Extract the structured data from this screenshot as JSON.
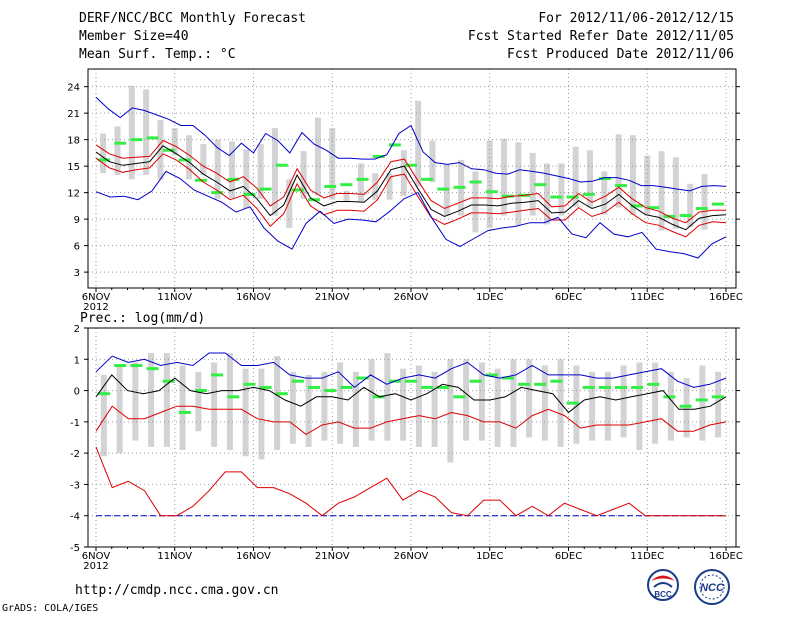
{
  "header": {
    "title": "DERF/NCC/BCC Monthly Forecast",
    "member_size": "Member Size=40",
    "variable": "Mean Surf. Temp.: °C",
    "forecast_for": "For 2012/11/06-2012/12/15",
    "refer_date": "Fcst Started Refer Date 2012/11/05",
    "produced_date": "Fcst Produced Date 2012/11/06"
  },
  "footer": {
    "url": "http://cmdp.ncc.cma.gov.cn",
    "credit": "GrADS: COLA/IGES",
    "logo_left": "BCC",
    "logo_right": "NCC"
  },
  "colors": {
    "grid": "#9a9a9a",
    "box": "#d3d3d6",
    "ens": "#33ee44",
    "line_mean": "#000000",
    "line_sd": "#dd0000",
    "line_ext": "#0000cc"
  },
  "chart_data": [
    {
      "type": "line",
      "title": "Mean Surf. Temp.: °C",
      "xlabel": "",
      "ylabel": "",
      "ylim": [
        1.2,
        26
      ],
      "yticks": [
        3,
        6,
        9,
        12,
        15,
        18,
        21,
        24
      ],
      "x_tick_labels": [
        "6NOV",
        "11NOV",
        "16NOV",
        "21NOV",
        "26NOV",
        "1DEC",
        "6DEC",
        "11DEC",
        "16DEC"
      ],
      "x_tick_sublabel": "2012",
      "x_tick_days": [
        0,
        5,
        10,
        15,
        20,
        25,
        30,
        35,
        40
      ],
      "days": 40,
      "grid": true,
      "series": [
        {
          "name": "max",
          "color_key": "line_ext",
          "values": [
            22.8,
            21.5,
            20.5,
            21.6,
            21.3,
            20.8,
            20.3,
            19.6,
            19.6,
            18.5,
            17.1,
            16.2,
            17.6,
            16.5,
            18.7,
            17.9,
            16.5,
            18.8,
            17.5,
            16.8,
            15.9,
            15.9,
            15.8,
            15.8,
            16.3,
            18.7,
            19.6,
            16.6,
            15.4,
            15.2,
            15.4,
            14.7,
            14.6,
            14.2,
            14.1,
            14.6,
            14.4,
            14.2,
            13.9,
            13.6,
            13.2,
            13.3,
            13.7,
            13.7,
            13.4,
            12.8,
            12.8,
            12.6,
            12.4,
            12.2,
            12.7,
            12.8,
            12.7
          ]
        },
        {
          "name": "mean_plus_sd",
          "color_key": "line_sd",
          "values": [
            17.4,
            16.4,
            15.9,
            16.0,
            16.1,
            17.9,
            17.2,
            16.2,
            15.0,
            14.2,
            13.2,
            13.8,
            12.5,
            10.5,
            11.5,
            14.7,
            12.3,
            11.4,
            11.9,
            11.9,
            11.8,
            13.2,
            15.5,
            15.8,
            13.4,
            11.1,
            10.2,
            10.8,
            11.4,
            11.4,
            11.3,
            11.6,
            11.7,
            11.9,
            10.4,
            10.5,
            11.9,
            10.9,
            11.6,
            12.6,
            11.3,
            10.3,
            9.9,
            9.1,
            8.6,
            9.8,
            10.0,
            10.0
          ]
        },
        {
          "name": "mean",
          "color_key": "line_mean",
          "values": [
            16.6,
            15.5,
            15.1,
            15.3,
            15.5,
            17.3,
            16.4,
            15.4,
            14.1,
            13.2,
            12.2,
            12.7,
            11.3,
            9.4,
            10.6,
            14.0,
            11.4,
            10.5,
            11.0,
            11.0,
            10.9,
            12.2,
            14.6,
            15.0,
            12.5,
            10.1,
            9.3,
            9.9,
            10.6,
            10.6,
            10.5,
            10.8,
            10.9,
            11.1,
            9.7,
            9.8,
            11.1,
            10.2,
            10.7,
            11.8,
            10.5,
            9.5,
            9.2,
            8.4,
            7.8,
            9.1,
            9.4,
            9.5
          ]
        },
        {
          "name": "mean_minus_sd",
          "color_key": "line_sd",
          "values": [
            15.9,
            14.8,
            14.3,
            14.6,
            14.8,
            16.4,
            15.7,
            14.6,
            13.2,
            12.3,
            11.2,
            11.7,
            10.2,
            8.2,
            9.6,
            13.0,
            10.5,
            9.5,
            10.0,
            10.0,
            9.9,
            11.2,
            13.8,
            14.1,
            11.6,
            9.2,
            8.4,
            9.0,
            9.7,
            9.7,
            9.6,
            9.8,
            10.0,
            10.2,
            8.9,
            8.9,
            10.3,
            9.3,
            9.8,
            10.9,
            9.6,
            8.6,
            8.3,
            7.6,
            7.0,
            8.3,
            8.7,
            8.6
          ]
        },
        {
          "name": "min",
          "color_key": "line_ext",
          "values": [
            12.1,
            11.5,
            11.6,
            11.2,
            12.2,
            14.4,
            13.6,
            12.3,
            11.6,
            10.9,
            9.8,
            10.4,
            8.0,
            6.5,
            5.6,
            8.5,
            9.9,
            8.5,
            9.0,
            8.9,
            8.7,
            9.9,
            11.3,
            12.0,
            9.1,
            6.7,
            5.9,
            6.8,
            7.7,
            8.0,
            8.2,
            8.6,
            8.6,
            9.2,
            7.3,
            6.9,
            8.6,
            7.3,
            7.0,
            7.5,
            5.6,
            5.3,
            5.1,
            4.6,
            6.2,
            7.0
          ]
        }
      ],
      "box_low": [
        14.2,
        14.0,
        13.5,
        14.0,
        13.5,
        16.2,
        13.5,
        14.0,
        11.3,
        11.4,
        10.2,
        11.3,
        9.4,
        8.0,
        11.3,
        11.7,
        11.2,
        10.9,
        10.9,
        11.2,
        11.2,
        11.6,
        12.7,
        13.2,
        9.4,
        9.4,
        7.5,
        8.0,
        9.4,
        8.3,
        9.4,
        8.4,
        9.4,
        10.4,
        10.3,
        9.5,
        10.3,
        9.5,
        9.4,
        7.7,
        7.9,
        8.1,
        7.8,
        7.9
      ],
      "box_high": [
        18.7,
        19.5,
        24.1,
        23.7,
        20.2,
        19.3,
        18.5,
        17.5,
        18.0,
        17.8,
        16.9,
        17.5,
        19.3,
        13.5,
        16.7,
        20.5,
        19.3,
        12.2,
        15.3,
        14.2,
        14.2,
        16.8,
        22.4,
        17.9,
        15.2,
        15.7,
        14.4,
        17.9,
        18.1,
        17.7,
        16.5,
        15.3,
        15.3,
        17.2,
        16.8,
        14.4,
        18.6,
        18.5,
        16.2,
        16.7,
        16.0,
        13.0,
        14.1
      ],
      "ensemble_mean": [
        15.7,
        17.6,
        18.0,
        18.2,
        16.8,
        15.7,
        13.4,
        12.0,
        13.5,
        11.8,
        12.4,
        15.1,
        12.3,
        11.2,
        12.7,
        12.9,
        13.5,
        16.1,
        17.4,
        15.1,
        13.5,
        12.4,
        12.6,
        13.2,
        12.1,
        11.6,
        11.7,
        12.9,
        11.5,
        11.5,
        11.8,
        13.6,
        12.8,
        10.5,
        10.3,
        9.3,
        9.4,
        10.2,
        10.7
      ]
    },
    {
      "type": "line",
      "title": "Prec.: log(mm/d)",
      "xlabel": "",
      "ylabel": "",
      "ylim": [
        -5,
        2
      ],
      "yticks": [
        -5,
        -4,
        -3,
        -2,
        -1,
        0,
        1,
        2
      ],
      "x_tick_labels": [
        "6NOV",
        "11NOV",
        "16NOV",
        "21NOV",
        "26NOV",
        "1DEC",
        "6DEC",
        "11DEC",
        "16DEC"
      ],
      "x_tick_sublabel": "2012",
      "x_tick_days": [
        0,
        5,
        10,
        15,
        20,
        25,
        30,
        35,
        40
      ],
      "days": 40,
      "grid": true,
      "series": [
        {
          "name": "max",
          "color_key": "line_ext",
          "values": [
            0.6,
            1.1,
            0.9,
            1.0,
            0.8,
            0.9,
            0.8,
            1.2,
            1.2,
            0.8,
            0.8,
            0.9,
            0.5,
            0.4,
            0.4,
            0.6,
            0.1,
            0.5,
            0.2,
            0.4,
            0.5,
            0.4,
            0.7,
            0.9,
            0.5,
            0.4,
            0.5,
            0.8,
            0.5,
            0.5,
            0.5,
            0.4,
            0.4,
            0.5,
            0.6,
            0.7,
            0.3,
            0.1,
            0.2,
            0.4
          ]
        },
        {
          "name": "mean",
          "color_key": "line_mean",
          "values": [
            -0.2,
            0.5,
            0.0,
            -0.1,
            0.0,
            0.4,
            0.0,
            -0.1,
            0.0,
            0.0,
            0.1,
            0.0,
            -0.3,
            -0.5,
            -0.2,
            -0.2,
            -0.3,
            0.1,
            -0.2,
            -0.1,
            -0.3,
            -0.1,
            0.2,
            0.1,
            -0.3,
            -0.3,
            -0.2,
            0.1,
            0.0,
            -0.1,
            -0.7,
            -0.3,
            -0.2,
            -0.3,
            -0.2,
            -0.1,
            0.0,
            -0.6,
            -0.6,
            -0.5,
            -0.2
          ]
        },
        {
          "name": "mean_minus_sd",
          "color_key": "line_sd",
          "values": [
            -1.3,
            -0.5,
            -0.9,
            -0.9,
            -0.7,
            -0.5,
            -0.5,
            -0.6,
            -0.6,
            -0.6,
            -0.9,
            -1.0,
            -1.0,
            -1.4,
            -1.1,
            -1.0,
            -1.2,
            -1.2,
            -1.0,
            -0.9,
            -0.8,
            -0.9,
            -0.7,
            -0.8,
            -1.0,
            -1.0,
            -1.2,
            -0.8,
            -0.6,
            -0.8,
            -1.2,
            -1.1,
            -1.1,
            -1.1,
            -1.0,
            -0.9,
            -1.3,
            -1.3,
            -1.1,
            -1.0
          ]
        },
        {
          "name": "min",
          "color_key": "line_ext",
          "values": [
            -4,
            -4,
            -4,
            -4,
            -4,
            -4,
            -4,
            -4,
            -4,
            -4,
            -4,
            -4,
            -4,
            -4,
            -4,
            -4,
            -4,
            -4,
            -4,
            -4,
            -4,
            -4,
            -4,
            -4,
            -4,
            -4,
            -4,
            -4,
            -4,
            -4,
            -4,
            -4,
            -4,
            -4,
            -4,
            -4,
            -4,
            -4,
            -4,
            -4
          ]
        },
        {
          "name": "low_line",
          "color_key": "line_sd",
          "values": [
            -1.8,
            -3.1,
            -2.9,
            -3.2,
            -4.0,
            -4.0,
            -3.7,
            -3.2,
            -2.6,
            -2.6,
            -3.1,
            -3.1,
            -3.3,
            -3.6,
            -4.0,
            -3.6,
            -3.4,
            -3.1,
            -2.8,
            -3.5,
            -3.2,
            -3.4,
            -3.9,
            -4.0,
            -3.5,
            -3.5,
            -4.0,
            -3.7,
            -4.0,
            -3.6,
            -3.8,
            -4.0,
            -3.8,
            -3.6,
            -4.0,
            -4.0,
            -4.0,
            -4.0,
            -4.0,
            -4.0
          ]
        }
      ],
      "box_low": [
        -2.1,
        -2.0,
        -1.6,
        -1.8,
        -1.8,
        -1.9,
        -1.3,
        -1.8,
        -1.9,
        -2.1,
        -2.2,
        -1.9,
        -1.7,
        -1.8,
        -1.6,
        -1.7,
        -1.8,
        -1.6,
        -1.6,
        -1.6,
        -1.8,
        -1.8,
        -2.3,
        -1.6,
        -1.6,
        -1.8,
        -1.8,
        -1.5,
        -1.6,
        -1.8,
        -1.7,
        -1.6,
        -1.6,
        -1.5,
        -1.9,
        -1.7,
        -1.6,
        -1.5,
        -1.6,
        -1.5
      ],
      "box_high": [
        0.5,
        0.8,
        0.9,
        1.2,
        1.2,
        0.8,
        0.6,
        0.9,
        1.2,
        0.7,
        0.7,
        1.1,
        0.6,
        0.5,
        0.6,
        0.9,
        0.6,
        1.0,
        1.2,
        0.7,
        0.8,
        0.6,
        1.0,
        1.0,
        0.9,
        0.7,
        1.0,
        1.0,
        0.8,
        1.0,
        0.8,
        0.6,
        0.6,
        0.8,
        0.9,
        0.9,
        0.6,
        0.4,
        0.8,
        0.6
      ],
      "ensemble_mean": [
        -0.1,
        0.8,
        0.8,
        0.7,
        0.3,
        -0.7,
        0.0,
        0.5,
        -0.2,
        0.2,
        0.1,
        -0.1,
        0.3,
        0.1,
        0.0,
        0.1,
        0.4,
        -0.2,
        0.3,
        0.3,
        0.1,
        0.1,
        -0.2,
        0.3,
        0.5,
        0.4,
        0.2,
        0.2,
        0.3,
        -0.4,
        0.1,
        0.1,
        0.1,
        0.1,
        0.2,
        -0.2,
        -0.5,
        -0.3,
        -0.2
      ]
    }
  ]
}
